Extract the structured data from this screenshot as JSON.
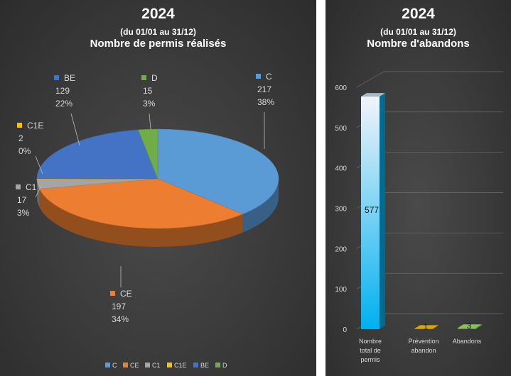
{
  "pie_chart": {
    "year": "2024",
    "period": "(du 01/01 au 31/12)",
    "title": "Nombre de permis réalisés"
  },
  "bar_chart": {
    "year": "2024",
    "period": "(du 01/01 au 31/12)",
    "title": "Nombre d'abandons"
  },
  "chart_data": [
    {
      "type": "pie",
      "title": "Nombre de permis réalisés",
      "subtitle": "2024 (du 01/01 au 31/12)",
      "categories": [
        "C",
        "CE",
        "C1",
        "C1E",
        "BE",
        "D"
      ],
      "values": [
        217,
        197,
        17,
        2,
        129,
        15
      ],
      "percent_labels": [
        "38%",
        "34%",
        "3%",
        "0%",
        "22%",
        "3%"
      ],
      "colors": [
        "#5b9bd5",
        "#ed7d31",
        "#a5a5a5",
        "#ffc000",
        "#4472c4",
        "#70ad47"
      ],
      "legend": "bottom",
      "style": "3d"
    },
    {
      "type": "bar",
      "title": "Nombre d'abandons",
      "subtitle": "2024 (du 01/01 au 31/12)",
      "categories": [
        "Nombre total de permis",
        "Prévention abandon",
        "Abandons"
      ],
      "category_lines": [
        [
          "Nombre",
          "total de",
          "permis"
        ],
        [
          "Prévention",
          "abandon"
        ],
        [
          "Abandons"
        ]
      ],
      "values": [
        577,
        1,
        3
      ],
      "colors": [
        "#00b0f0",
        "#bf9000",
        "#70ad47"
      ],
      "ylim": [
        0,
        600
      ],
      "yticks": [
        0,
        100,
        200,
        300,
        400,
        500,
        600
      ],
      "grid": true,
      "style": "3d"
    }
  ]
}
